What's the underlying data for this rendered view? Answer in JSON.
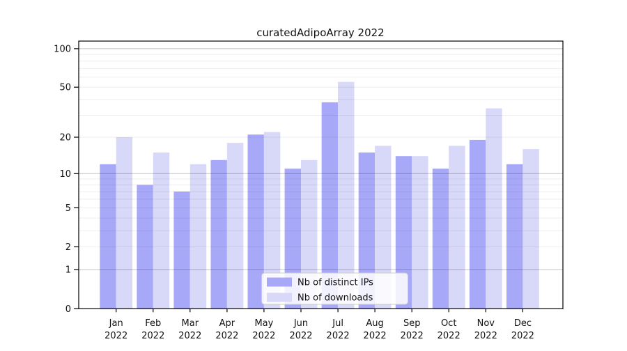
{
  "chart_data": {
    "type": "bar",
    "title": "curatedAdipoArray 2022",
    "categories": [
      "Jan 2022",
      "Feb 2022",
      "Mar 2022",
      "Apr 2022",
      "May 2022",
      "Jun 2022",
      "Jul 2022",
      "Aug 2022",
      "Sep 2022",
      "Oct 2022",
      "Nov 2022",
      "Dec 2022"
    ],
    "series": [
      {
        "name": "Nb of distinct IPs",
        "color": "#a8a8f8",
        "values": [
          12,
          8,
          7,
          13,
          21,
          11,
          38,
          15,
          14,
          11,
          19,
          12
        ]
      },
      {
        "name": "Nb of downloads",
        "color": "#d8d8f8",
        "values": [
          20,
          15,
          12,
          18,
          22,
          13,
          55,
          17,
          14,
          17,
          34,
          16
        ]
      }
    ],
    "xlabel": "",
    "ylabel": "",
    "y_scale": "log10(1+y)",
    "ylim": [
      0,
      115
    ],
    "y_ticks": [
      100,
      50,
      20,
      10,
      5,
      2,
      1,
      0
    ],
    "y_major_gridlines": [
      100,
      10,
      1
    ],
    "y_minor_gridlines": [
      90,
      80,
      70,
      60,
      50,
      40,
      30,
      20,
      9,
      8,
      7,
      6,
      5,
      4,
      3,
      2
    ],
    "grid": "on",
    "legend_position": "lower center"
  }
}
